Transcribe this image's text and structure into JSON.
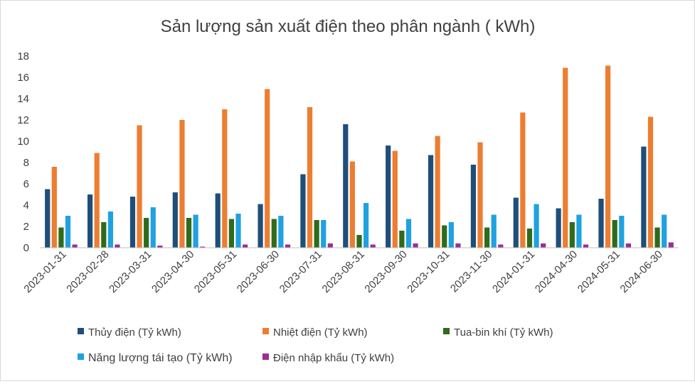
{
  "chart_data": {
    "type": "bar",
    "title": "Sản lượng sản xuất điện theo phân ngành ( kWh)",
    "xlabel": "",
    "ylabel": "",
    "ylim": [
      0,
      18
    ],
    "yticks": [
      0,
      2,
      4,
      6,
      8,
      10,
      12,
      14,
      16,
      18
    ],
    "grid": false,
    "legend": "bottom",
    "categories": [
      "2023-01-31",
      "2023-02-28",
      "2023-03-31",
      "2023-04-30",
      "2023-05-31",
      "2023-06-30",
      "2023-07-31",
      "2023-08-31",
      "2023-09-30",
      "2023-10-31",
      "2023-11-30",
      "2024-01-31",
      "2024-04-30",
      "2024-05-31",
      "2024-06-30"
    ],
    "series": [
      {
        "name": "Thủy điện (Tỷ kWh)",
        "color": "#1f4e79",
        "values": [
          5.5,
          5.0,
          4.8,
          5.2,
          5.1,
          4.1,
          6.9,
          11.6,
          9.6,
          8.7,
          7.8,
          4.7,
          3.7,
          4.6,
          9.5
        ]
      },
      {
        "name": "Nhiệt điện (Tỷ kWh)",
        "color": "#ed7d31",
        "values": [
          7.6,
          8.9,
          11.5,
          12.0,
          13.0,
          14.9,
          13.2,
          8.1,
          9.1,
          10.5,
          9.9,
          12.7,
          16.9,
          17.1,
          12.3
        ]
      },
      {
        "name": "Tua-bin khí (Tỷ kWh)",
        "color": "#2e6b1a",
        "values": [
          1.9,
          2.4,
          2.8,
          2.8,
          2.7,
          2.7,
          2.6,
          1.2,
          1.6,
          2.1,
          1.9,
          1.8,
          2.4,
          2.6,
          1.9
        ]
      },
      {
        "name": "Năng lượng tái tạo (Tỷ kWh)",
        "color": "#1fa2e0",
        "values": [
          3.0,
          3.4,
          3.8,
          3.1,
          3.2,
          3.0,
          2.6,
          4.2,
          2.7,
          2.4,
          3.1,
          4.1,
          3.1,
          3.0,
          3.1
        ]
      },
      {
        "name": "Điện nhập khẩu (Tỷ kWh)",
        "color": "#9b2d96",
        "values": [
          0.3,
          0.3,
          0.2,
          0.1,
          0.3,
          0.3,
          0.4,
          0.3,
          0.4,
          0.4,
          0.3,
          0.4,
          0.3,
          0.4,
          0.5
        ]
      }
    ]
  }
}
